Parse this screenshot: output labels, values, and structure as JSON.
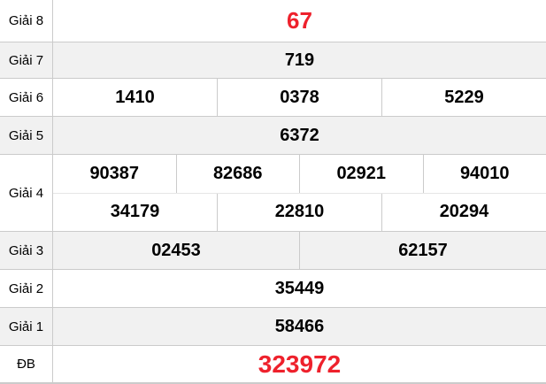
{
  "colors": {
    "highlight_red": "#ee212c",
    "alt_row_bg": "#f1f1f1",
    "border": "#cbcbcb",
    "inner_border": "#e6e6e6",
    "text": "#000000"
  },
  "table": {
    "type": "lottery-results",
    "rows": [
      {
        "label": "Giải 8",
        "cells": [
          "67"
        ],
        "highlight": true
      },
      {
        "label": "Giải 7",
        "cells": [
          "719"
        ]
      },
      {
        "label": "Giải 6",
        "cells": [
          "1410",
          "0378",
          "5229"
        ]
      },
      {
        "label": "Giải 5",
        "cells": [
          "6372"
        ]
      },
      {
        "label": "Giải 4",
        "lines": [
          [
            "90387",
            "82686",
            "02921",
            "94010"
          ],
          [
            "34179",
            "22810",
            "20294"
          ]
        ]
      },
      {
        "label": "Giải 3",
        "cells": [
          "02453",
          "62157"
        ]
      },
      {
        "label": "Giải 2",
        "cells": [
          "35449"
        ]
      },
      {
        "label": "Giải 1",
        "cells": [
          "58466"
        ]
      },
      {
        "label": "ĐB",
        "cells": [
          "323972"
        ],
        "highlight": true
      }
    ]
  }
}
